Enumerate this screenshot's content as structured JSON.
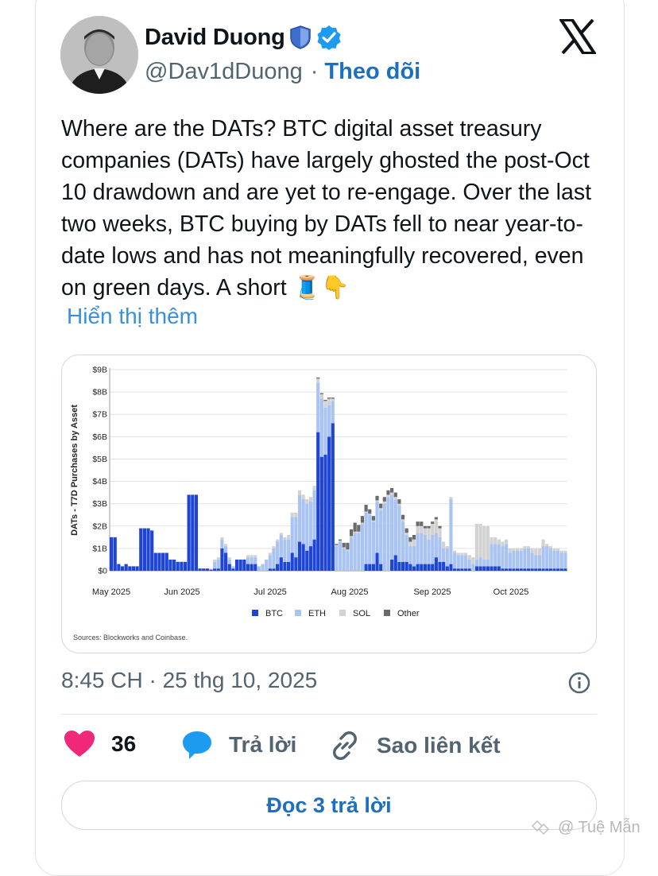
{
  "author": {
    "name": "David Duong",
    "handle": "@Dav1dDuong",
    "separator": "·",
    "follow_label": "Theo dõi",
    "avatar_icon": "person-avatar",
    "shield_icon": "shield-icon",
    "verified_icon": "verified-badge-icon"
  },
  "platform_icon": "x-logo-icon",
  "tweet": {
    "text": "Where are the DATs? BTC digital asset treasury companies (DATs) have largely ghosted the post-Oct 10 drawdown and are yet to re-engage. Over the last two weeks, BTC buying by DATs fell to near year-to-date lows and has not meaningfully recovered, even on green days. A short",
    "emoji": "🧵👇",
    "show_more": "Hiển thị thêm"
  },
  "chart_data": {
    "type": "bar",
    "stacked": true,
    "ylabel": "DATs - T7D Purchases by Asset",
    "yticks": [
      "$0",
      "$1B",
      "$2B",
      "$3B",
      "$4B",
      "$5B",
      "$6B",
      "$7B",
      "$8B",
      "$9B"
    ],
    "ylim": [
      0,
      9
    ],
    "xticks": [
      "May 2025",
      "Jun 2025",
      "Jul 2025",
      "Aug 2025",
      "Sep 2025",
      "Oct 2025"
    ],
    "legend": [
      {
        "name": "BTC",
        "color": "#1f45d8"
      },
      {
        "name": "ETH",
        "color": "#a9c3f2"
      },
      {
        "name": "SOL",
        "color": "#d2d2d2"
      },
      {
        "name": "Other",
        "color": "#6a6a6a"
      }
    ],
    "legend_position": "bottom",
    "source": "Sources: Blockworks and Coinbase.",
    "grid": true,
    "bars": [
      [
        1.5,
        0,
        0,
        0
      ],
      [
        1.5,
        0,
        0,
        0
      ],
      [
        0.3,
        0,
        0,
        0
      ],
      [
        0.2,
        0,
        0,
        0
      ],
      [
        0.3,
        0,
        0,
        0
      ],
      [
        0.2,
        0,
        0,
        0
      ],
      [
        0.2,
        0,
        0,
        0
      ],
      [
        0.2,
        0,
        0,
        0
      ],
      [
        1.9,
        0,
        0,
        0
      ],
      [
        1.9,
        0,
        0,
        0
      ],
      [
        1.9,
        0,
        0,
        0
      ],
      [
        1.8,
        0,
        0,
        0
      ],
      [
        0.8,
        0,
        0,
        0
      ],
      [
        0.8,
        0,
        0,
        0
      ],
      [
        0.8,
        0,
        0,
        0
      ],
      [
        0.8,
        0,
        0,
        0
      ],
      [
        0.5,
        0,
        0,
        0
      ],
      [
        0.5,
        0,
        0,
        0
      ],
      [
        0.4,
        0,
        0,
        0
      ],
      [
        0.4,
        0,
        0,
        0
      ],
      [
        0.4,
        0,
        0,
        0
      ],
      [
        3.4,
        0,
        0,
        0
      ],
      [
        3.4,
        0,
        0,
        0
      ],
      [
        3.4,
        0,
        0,
        0
      ],
      [
        0.1,
        0,
        0,
        0
      ],
      [
        0.1,
        0,
        0,
        0
      ],
      [
        0.1,
        0,
        0,
        0
      ],
      [
        0.05,
        0,
        0.05,
        0
      ],
      [
        0.1,
        0.3,
        0.1,
        0
      ],
      [
        0.1,
        0.4,
        0.1,
        0
      ],
      [
        1.0,
        0.4,
        0.1,
        0
      ],
      [
        0.8,
        0.3,
        0.1,
        0
      ],
      [
        0.3,
        0.2,
        0.1,
        0
      ],
      [
        0.1,
        0.1,
        0,
        0
      ],
      [
        0.5,
        0,
        0,
        0
      ],
      [
        0.5,
        0,
        0,
        0
      ],
      [
        0.5,
        0,
        0,
        0
      ],
      [
        0.3,
        0.3,
        0.1,
        0
      ],
      [
        0.3,
        0.3,
        0.1,
        0
      ],
      [
        0.3,
        0.3,
        0.1,
        0
      ],
      [
        0,
        0.2,
        0,
        0
      ],
      [
        0,
        0.3,
        0,
        0
      ],
      [
        0,
        0.5,
        0,
        0
      ],
      [
        0.1,
        0.6,
        0.1,
        0
      ],
      [
        0.1,
        0.9,
        0.1,
        0
      ],
      [
        0.3,
        1.0,
        0.1,
        0
      ],
      [
        0.6,
        1.0,
        0.1,
        0
      ],
      [
        0.4,
        1.0,
        0.1,
        0
      ],
      [
        0.4,
        1.0,
        0.2,
        0
      ],
      [
        0.8,
        1.6,
        0.2,
        0
      ],
      [
        0.6,
        1.8,
        0.2,
        0
      ],
      [
        1.3,
        2.1,
        0.2,
        0
      ],
      [
        1.2,
        2.0,
        0.2,
        0
      ],
      [
        0.9,
        2.1,
        0.2,
        0
      ],
      [
        1.1,
        2.0,
        0.2,
        0
      ],
      [
        1.4,
        2.2,
        0.2,
        0
      ],
      [
        6.2,
        2.2,
        0.2,
        0.05
      ],
      [
        5.1,
        2.6,
        0.2,
        0.05
      ],
      [
        5.2,
        2.1,
        0.3,
        0.05
      ],
      [
        6.0,
        1.4,
        0.3,
        0.05
      ],
      [
        6.6,
        1.0,
        0.1,
        0.05
      ],
      [
        0,
        1.1,
        0.05,
        0.05
      ],
      [
        0,
        1.3,
        0.05,
        0.05
      ],
      [
        0,
        1.0,
        0.05,
        0.2
      ],
      [
        0,
        0.9,
        0.05,
        0.3
      ],
      [
        0,
        1.5,
        0.05,
        0.3
      ],
      [
        0,
        1.7,
        0.05,
        0.4
      ],
      [
        0,
        1.7,
        0.05,
        0.3
      ],
      [
        0,
        2.1,
        0.05,
        0.3
      ],
      [
        0.3,
        2.3,
        0.05,
        0.3
      ],
      [
        0.3,
        2.2,
        0.05,
        0.2
      ],
      [
        0.3,
        1.9,
        0.05,
        0.2
      ],
      [
        0.8,
        2.3,
        0.05,
        0.2
      ],
      [
        0.3,
        2.4,
        0.1,
        0.2
      ],
      [
        0,
        3.0,
        0.1,
        0.2
      ],
      [
        0,
        3.3,
        0.1,
        0.2
      ],
      [
        0.5,
        2.9,
        0.1,
        0.2
      ],
      [
        0.7,
        2.5,
        0.1,
        0.2
      ],
      [
        0.4,
        2.5,
        0.1,
        0.2
      ],
      [
        0.4,
        1.8,
        0.1,
        0.2
      ],
      [
        0.4,
        1.2,
        0.1,
        0.2
      ],
      [
        0.3,
        0.8,
        0.2,
        0.2
      ],
      [
        0.2,
        0.9,
        0.3,
        0.2
      ],
      [
        0.3,
        1.4,
        0.3,
        0.2
      ],
      [
        0.3,
        1.4,
        0.3,
        0.2
      ],
      [
        0.3,
        1.3,
        0.3,
        0.1
      ],
      [
        0.3,
        1.1,
        0.5,
        0.1
      ],
      [
        0.3,
        1.3,
        0.5,
        0.1
      ],
      [
        0.6,
        1.1,
        0.6,
        0.1
      ],
      [
        0.4,
        1.1,
        0.4,
        0.1
      ],
      [
        0.4,
        0.6,
        0.3,
        0
      ],
      [
        0.2,
        0.8,
        0.1,
        0
      ],
      [
        0.3,
        2.9,
        0.1,
        0
      ],
      [
        0.1,
        0.7,
        0.1,
        0
      ],
      [
        0.1,
        0.6,
        0.1,
        0
      ],
      [
        0.1,
        0.6,
        0.1,
        0
      ],
      [
        0.1,
        0.6,
        0.1,
        0
      ],
      [
        0.1,
        0.4,
        0.2,
        0
      ],
      [
        0,
        0.3,
        0.3,
        0
      ],
      [
        0.2,
        0.3,
        1.6,
        0
      ],
      [
        0.2,
        0.4,
        1.5,
        0
      ],
      [
        0.2,
        0.3,
        1.5,
        0
      ],
      [
        0.2,
        0.3,
        1.5,
        0
      ],
      [
        0.2,
        1.0,
        0.3,
        0
      ],
      [
        0.2,
        1.0,
        0.3,
        0
      ],
      [
        0.2,
        1.0,
        0.2,
        0
      ],
      [
        0.1,
        1.0,
        0.2,
        0
      ],
      [
        0.1,
        1.1,
        0.2,
        0
      ],
      [
        0.1,
        0.7,
        0.2,
        0
      ],
      [
        0.1,
        0.8,
        0.1,
        0
      ],
      [
        0.1,
        0.8,
        0.1,
        0
      ],
      [
        0.1,
        0.8,
        0.1,
        0
      ],
      [
        0.1,
        0.9,
        0.1,
        0
      ],
      [
        0.1,
        0.9,
        0.1,
        0
      ],
      [
        0.1,
        0.7,
        0.2,
        0
      ],
      [
        0.1,
        0.6,
        0.3,
        0
      ],
      [
        0.1,
        0.6,
        0.3,
        0
      ],
      [
        0.1,
        1.0,
        0.3,
        0
      ],
      [
        0.1,
        1.0,
        0.1,
        0
      ],
      [
        0.1,
        0.9,
        0.1,
        0
      ],
      [
        0.1,
        0.8,
        0.1,
        0
      ],
      [
        0.1,
        0.8,
        0.1,
        0
      ],
      [
        0.1,
        0.7,
        0.1,
        0
      ],
      [
        0.1,
        0.7,
        0.1,
        0
      ]
    ]
  },
  "timestamp": "8:45 CH · 25 thg 10, 2025",
  "actions": {
    "like_count": "36",
    "reply_label": "Trả lời",
    "copy_link_label": "Sao liên kết",
    "read_replies_label": "Đọc 3 trả lời"
  },
  "watermark": "@ Tuệ Mẫn"
}
